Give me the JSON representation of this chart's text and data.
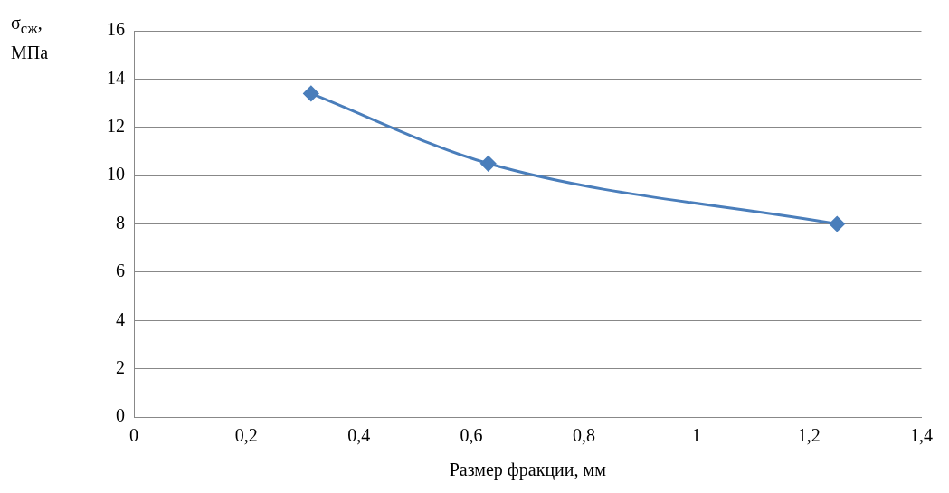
{
  "chart_data": {
    "type": "line",
    "xlabel": "Размер фракции, мм",
    "ylabel": "σ$_{сж}$, МПа",
    "x": [
      0.315,
      0.63,
      1.25
    ],
    "series": [
      {
        "color": "#4a7ebb",
        "values": [
          13.4,
          10.5,
          8.0
        ]
      }
    ],
    "xlim": [
      0,
      1.4
    ],
    "xticks": [
      0,
      {
        "value": 0.2,
        "label": "0,2"
      },
      {
        "value": 0.4,
        "label": "0,4"
      },
      {
        "value": 0.6,
        "label": "0,6"
      },
      {
        "value": 0.8,
        "label": "0,8"
      },
      1,
      {
        "value": 1.2,
        "label": "1,2"
      },
      {
        "value": 1.4,
        "label": "1,4"
      }
    ],
    "ylim": [
      0,
      16
    ],
    "yticks": [
      0,
      2,
      4,
      6,
      8,
      10,
      12,
      14,
      16
    ],
    "grid": "y",
    "legend": false,
    "marker": "diamond",
    "line_style": "solid"
  }
}
